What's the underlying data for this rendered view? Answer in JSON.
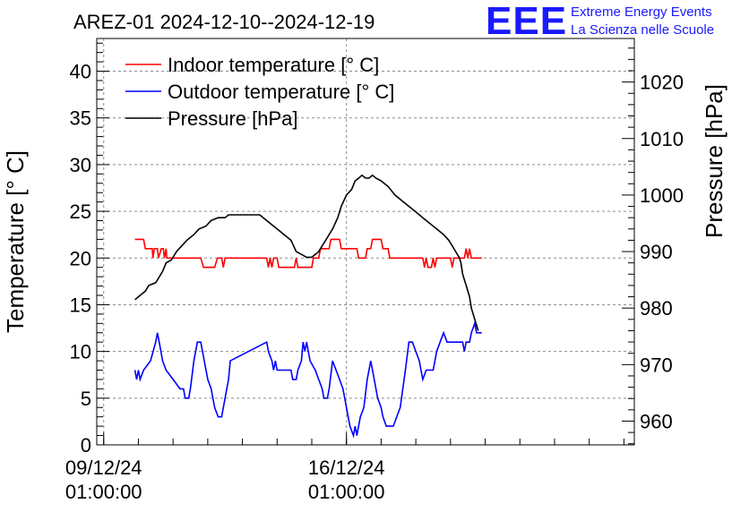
{
  "logo": {
    "mark": "EEE",
    "line1": "Extreme Energy Events",
    "line2": "La Scienza nelle Scuole"
  },
  "colors": {
    "indoor": "#ff0000",
    "outdoor": "#0000ff",
    "pressure": "#000000",
    "grid": "#8c8c8c",
    "logo": "#1a1aff"
  },
  "chart_data": {
    "type": "line",
    "title": "AREZ-01 2024-12-10--2024-12-19",
    "ylabel": "Temperature [° C]",
    "y2label": "Pressure [hPa]",
    "xlabel": "",
    "ylim": [
      0,
      43.5
    ],
    "y2lim": [
      955.8,
      1027.7
    ],
    "xlim": [
      -0.2,
      15.3
    ],
    "yticks": [
      0,
      5,
      10,
      15,
      20,
      25,
      30,
      35,
      40
    ],
    "y2ticks": [
      960,
      970,
      980,
      990,
      1000,
      1010,
      1020
    ],
    "xticks": [
      {
        "x": 0,
        "label": [
          "09/12/24",
          "01:00:00"
        ]
      },
      {
        "x": 7,
        "label": [
          "16/12/24",
          "01:00:00"
        ]
      }
    ],
    "grid": true,
    "legend_position": "top-left",
    "x_unit": "days since 09/12/24 01:00:00",
    "series": [
      {
        "name": "Indoor temperature [° C]",
        "axis": "left",
        "color": "#ff0000",
        "points": [
          [
            0.9,
            22
          ],
          [
            1.15,
            22
          ],
          [
            1.2,
            21
          ],
          [
            1.4,
            21
          ],
          [
            1.42,
            20
          ],
          [
            1.46,
            21
          ],
          [
            1.55,
            21
          ],
          [
            1.58,
            20
          ],
          [
            1.66,
            21
          ],
          [
            1.72,
            21
          ],
          [
            1.75,
            20
          ],
          [
            1.8,
            21
          ],
          [
            1.82,
            20
          ],
          [
            2.8,
            20
          ],
          [
            2.88,
            19
          ],
          [
            3.2,
            19
          ],
          [
            3.28,
            20
          ],
          [
            3.4,
            20
          ],
          [
            3.45,
            19
          ],
          [
            3.5,
            20
          ],
          [
            4.7,
            20
          ],
          [
            4.75,
            19
          ],
          [
            4.8,
            20
          ],
          [
            4.85,
            19
          ],
          [
            4.9,
            20
          ],
          [
            5.0,
            20
          ],
          [
            5.05,
            19
          ],
          [
            5.5,
            19
          ],
          [
            5.55,
            20
          ],
          [
            5.6,
            19
          ],
          [
            6.0,
            19
          ],
          [
            6.05,
            20
          ],
          [
            6.2,
            20
          ],
          [
            6.25,
            21
          ],
          [
            6.5,
            21
          ],
          [
            6.55,
            22
          ],
          [
            6.8,
            22
          ],
          [
            6.85,
            21
          ],
          [
            7.3,
            21
          ],
          [
            7.35,
            20
          ],
          [
            7.55,
            20
          ],
          [
            7.6,
            21
          ],
          [
            7.7,
            21
          ],
          [
            7.75,
            22
          ],
          [
            8.0,
            22
          ],
          [
            8.05,
            21
          ],
          [
            8.2,
            21
          ],
          [
            8.25,
            20
          ],
          [
            9.2,
            20
          ],
          [
            9.25,
            19
          ],
          [
            9.3,
            20
          ],
          [
            9.35,
            19
          ],
          [
            9.45,
            19
          ],
          [
            9.5,
            20
          ],
          [
            9.55,
            19
          ],
          [
            9.6,
            20
          ],
          [
            10.0,
            20
          ],
          [
            10.05,
            19
          ],
          [
            10.1,
            20
          ],
          [
            10.4,
            20
          ],
          [
            10.45,
            21
          ],
          [
            10.5,
            20
          ],
          [
            10.55,
            21
          ],
          [
            10.6,
            20
          ],
          [
            10.9,
            20
          ]
        ]
      },
      {
        "name": "Outdoor temperature [° C]",
        "axis": "left",
        "color": "#0000ff",
        "points": [
          [
            0.9,
            8
          ],
          [
            0.95,
            7
          ],
          [
            1.0,
            8
          ],
          [
            1.05,
            7
          ],
          [
            1.15,
            8
          ],
          [
            1.35,
            9
          ],
          [
            1.5,
            11
          ],
          [
            1.55,
            12
          ],
          [
            1.6,
            11
          ],
          [
            1.7,
            9
          ],
          [
            1.8,
            8
          ],
          [
            2.0,
            7
          ],
          [
            2.2,
            6
          ],
          [
            2.3,
            6
          ],
          [
            2.35,
            5
          ],
          [
            2.45,
            5
          ],
          [
            2.5,
            6
          ],
          [
            2.6,
            9
          ],
          [
            2.7,
            11
          ],
          [
            2.8,
            11
          ],
          [
            2.9,
            9
          ],
          [
            3.0,
            7
          ],
          [
            3.1,
            6
          ],
          [
            3.2,
            4
          ],
          [
            3.3,
            3
          ],
          [
            3.4,
            3
          ],
          [
            3.45,
            4
          ],
          [
            3.5,
            5
          ],
          [
            3.6,
            7
          ],
          [
            3.65,
            9
          ],
          [
            4.7,
            11
          ],
          [
            4.75,
            10
          ],
          [
            4.85,
            9
          ],
          [
            4.9,
            8
          ],
          [
            4.95,
            9
          ],
          [
            5.0,
            8
          ],
          [
            5.2,
            8
          ],
          [
            5.4,
            8
          ],
          [
            5.45,
            7
          ],
          [
            5.55,
            7
          ],
          [
            5.6,
            8
          ],
          [
            5.7,
            9
          ],
          [
            5.75,
            11
          ],
          [
            5.8,
            10
          ],
          [
            5.85,
            11
          ],
          [
            5.95,
            9
          ],
          [
            6.1,
            8
          ],
          [
            6.2,
            7
          ],
          [
            6.3,
            6
          ],
          [
            6.35,
            5
          ],
          [
            6.45,
            5
          ],
          [
            6.5,
            6
          ],
          [
            6.6,
            9
          ],
          [
            6.7,
            8
          ],
          [
            6.8,
            7
          ],
          [
            6.9,
            6
          ],
          [
            7.0,
            4
          ],
          [
            7.05,
            3
          ],
          [
            7.1,
            2
          ],
          [
            7.2,
            1
          ],
          [
            7.25,
            2
          ],
          [
            7.3,
            1
          ],
          [
            7.4,
            3
          ],
          [
            7.5,
            4
          ],
          [
            7.6,
            7
          ],
          [
            7.7,
            9
          ],
          [
            7.8,
            7
          ],
          [
            7.9,
            5
          ],
          [
            8.0,
            4
          ],
          [
            8.05,
            3
          ],
          [
            8.15,
            2
          ],
          [
            8.35,
            2
          ],
          [
            8.45,
            3
          ],
          [
            8.55,
            4
          ],
          [
            8.7,
            8
          ],
          [
            8.8,
            11
          ],
          [
            8.9,
            11
          ],
          [
            9.0,
            10
          ],
          [
            9.1,
            9
          ],
          [
            9.15,
            8
          ],
          [
            9.2,
            7
          ],
          [
            9.3,
            8
          ],
          [
            9.5,
            8
          ],
          [
            9.6,
            10
          ],
          [
            9.7,
            11
          ],
          [
            9.8,
            12
          ],
          [
            9.9,
            11
          ],
          [
            10.1,
            11
          ],
          [
            10.35,
            11
          ],
          [
            10.4,
            10
          ],
          [
            10.45,
            11
          ],
          [
            10.55,
            11
          ],
          [
            10.6,
            12
          ],
          [
            10.7,
            13
          ],
          [
            10.75,
            12
          ],
          [
            10.9,
            12
          ]
        ]
      },
      {
        "name": "Pressure [hPa]",
        "axis": "right",
        "color": "#000000",
        "points": [
          [
            0.9,
            981.5
          ],
          [
            1.0,
            982
          ],
          [
            1.1,
            982.5
          ],
          [
            1.2,
            983
          ],
          [
            1.3,
            984
          ],
          [
            1.5,
            984.5
          ],
          [
            1.6,
            985.5
          ],
          [
            1.7,
            986.5
          ],
          [
            1.8,
            988
          ],
          [
            1.95,
            988.5
          ],
          [
            2.1,
            990
          ],
          [
            2.25,
            991
          ],
          [
            2.4,
            992
          ],
          [
            2.6,
            993
          ],
          [
            2.75,
            994
          ],
          [
            2.95,
            994.5
          ],
          [
            3.1,
            995.5
          ],
          [
            3.3,
            996
          ],
          [
            3.5,
            996
          ],
          [
            3.6,
            996.5
          ],
          [
            4.5,
            996.5
          ],
          [
            4.6,
            996
          ],
          [
            4.8,
            995
          ],
          [
            5.0,
            994
          ],
          [
            5.2,
            993
          ],
          [
            5.4,
            992
          ],
          [
            5.55,
            990
          ],
          [
            5.7,
            989.5
          ],
          [
            5.85,
            989
          ],
          [
            6.0,
            989
          ],
          [
            6.2,
            990
          ],
          [
            6.3,
            991
          ],
          [
            6.45,
            992.5
          ],
          [
            6.6,
            994
          ],
          [
            6.75,
            996
          ],
          [
            6.85,
            998
          ],
          [
            7.0,
            1000
          ],
          [
            7.15,
            1001
          ],
          [
            7.25,
            1002.5
          ],
          [
            7.35,
            1003
          ],
          [
            7.45,
            1003.5
          ],
          [
            7.55,
            1003
          ],
          [
            7.65,
            1003
          ],
          [
            7.75,
            1003.5
          ],
          [
            7.85,
            1003
          ],
          [
            8.0,
            1002.5
          ],
          [
            8.2,
            1001.5
          ],
          [
            8.4,
            1000
          ],
          [
            8.6,
            999
          ],
          [
            8.8,
            998
          ],
          [
            9.0,
            997
          ],
          [
            9.2,
            996
          ],
          [
            9.4,
            995
          ],
          [
            9.6,
            994
          ],
          [
            9.8,
            993
          ],
          [
            9.95,
            992
          ],
          [
            10.05,
            991
          ],
          [
            10.15,
            990
          ],
          [
            10.25,
            989
          ],
          [
            10.3,
            988
          ],
          [
            10.35,
            986
          ],
          [
            10.45,
            984
          ],
          [
            10.55,
            982
          ],
          [
            10.6,
            980
          ],
          [
            10.7,
            978
          ],
          [
            10.8,
            976
          ]
        ]
      }
    ]
  }
}
